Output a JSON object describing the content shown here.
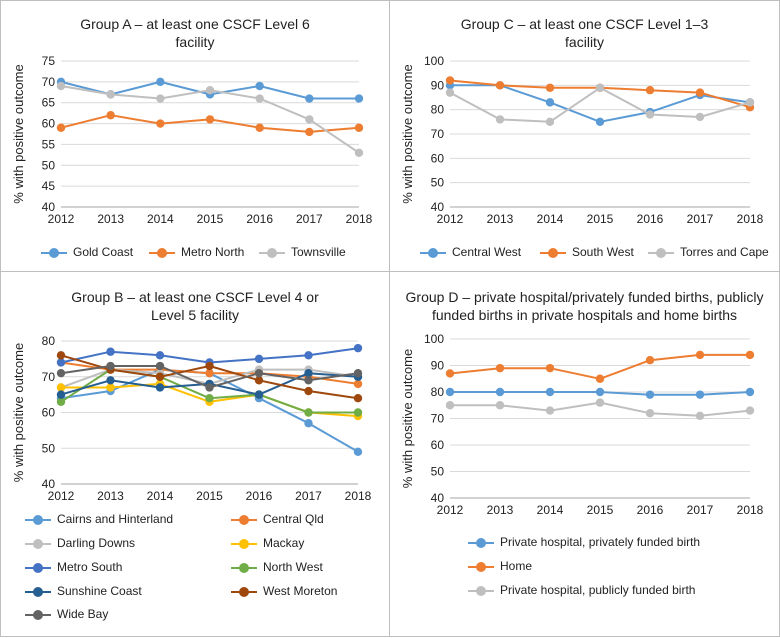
{
  "chart_data": [
    {
      "type": "line",
      "title_lines": [
        "Group A – at least one CSCF Level 6",
        "facility"
      ],
      "ylabel": "% with positive outcome",
      "xlabel": "",
      "x": [
        "2012",
        "2013",
        "2014",
        "2015",
        "2016",
        "2017",
        "2018"
      ],
      "ylim": [
        40,
        75
      ],
      "yticks": [
        40,
        45,
        50,
        55,
        60,
        65,
        70,
        75
      ],
      "grid": true,
      "legend_position": "bottom",
      "series": [
        {
          "name": "Gold Coast",
          "color": "#5b9bd5",
          "values": [
            70,
            67,
            70,
            67,
            69,
            66,
            66
          ]
        },
        {
          "name": "Metro North",
          "color": "#ed7d31",
          "values": [
            59,
            62,
            60,
            61,
            59,
            58,
            59
          ]
        },
        {
          "name": "Townsville",
          "color": "#bfbfbf",
          "values": [
            69,
            67,
            66,
            68,
            66,
            61,
            53
          ]
        }
      ]
    },
    {
      "type": "line",
      "title_lines": [
        "Group C – at least one CSCF Level 1–3",
        "facility"
      ],
      "ylabel": "% with positive outcome",
      "xlabel": "",
      "x": [
        "2012",
        "2013",
        "2014",
        "2015",
        "2016",
        "2017",
        "2018"
      ],
      "ylim": [
        40,
        100
      ],
      "yticks": [
        40,
        50,
        60,
        70,
        80,
        90,
        100
      ],
      "grid": true,
      "legend_position": "bottom",
      "series": [
        {
          "name": "Central West",
          "color": "#5b9bd5",
          "values": [
            90,
            90,
            83,
            75,
            79,
            86,
            83
          ]
        },
        {
          "name": "South West",
          "color": "#ed7d31",
          "values": [
            92,
            90,
            89,
            89,
            88,
            87,
            81
          ]
        },
        {
          "name": "Torres and Cape",
          "color": "#bfbfbf",
          "values": [
            87,
            76,
            75,
            89,
            78,
            77,
            83
          ]
        }
      ]
    },
    {
      "type": "line",
      "title_lines": [
        "Group B – at least one CSCF Level 4 or",
        "Level 5 facility"
      ],
      "ylabel": "% with positive outcome",
      "xlabel": "",
      "x": [
        "2012",
        "2013",
        "2014",
        "2015",
        "2016",
        "2017",
        "2018"
      ],
      "ylim": [
        40,
        80
      ],
      "yticks": [
        40,
        50,
        60,
        70,
        80
      ],
      "grid": true,
      "legend_position": "bottom",
      "series": [
        {
          "name": "Cairns and Hinterland",
          "color": "#5b9bd5",
          "values": [
            64,
            66,
            72,
            71,
            64,
            57,
            49
          ]
        },
        {
          "name": "Central Qld",
          "color": "#ed7d31",
          "values": [
            74,
            72,
            72,
            71,
            71,
            70,
            68
          ]
        },
        {
          "name": "Darling Downs",
          "color": "#bfbfbf",
          "values": [
            67,
            72,
            71,
            68,
            72,
            72,
            70
          ]
        },
        {
          "name": "Mackay",
          "color": "#ffc000",
          "values": [
            67,
            67,
            68,
            63,
            65,
            60,
            59
          ]
        },
        {
          "name": "Metro South",
          "color": "#4472c4",
          "values": [
            74,
            77,
            76,
            74,
            75,
            76,
            78
          ]
        },
        {
          "name": "North West",
          "color": "#70ad47",
          "values": [
            63,
            72,
            70,
            64,
            65,
            60,
            60
          ]
        },
        {
          "name": "Sunshine Coast",
          "color": "#255e91",
          "values": [
            65,
            69,
            67,
            68,
            65,
            71,
            70
          ]
        },
        {
          "name": "West Moreton",
          "color": "#9e480e",
          "values": [
            76,
            72,
            70,
            73,
            69,
            66,
            64
          ]
        },
        {
          "name": "Wide Bay",
          "color": "#636363",
          "values": [
            71,
            73,
            73,
            67,
            71,
            69,
            71
          ]
        }
      ]
    },
    {
      "type": "line",
      "title_lines": [
        "Group D – private hospital/privately funded births, publicly",
        "funded births in private hospitals and home births"
      ],
      "ylabel": "% with positive outcome",
      "xlabel": "",
      "x": [
        "2012",
        "2013",
        "2014",
        "2015",
        "2016",
        "2017",
        "2018"
      ],
      "ylim": [
        40,
        100
      ],
      "yticks": [
        40,
        50,
        60,
        70,
        80,
        90,
        100
      ],
      "grid": true,
      "legend_position": "bottom",
      "series": [
        {
          "name": "Private hospital, privately funded birth",
          "color": "#5b9bd5",
          "values": [
            80,
            80,
            80,
            80,
            79,
            79,
            80
          ]
        },
        {
          "name": "Home",
          "color": "#ed7d31",
          "values": [
            87,
            89,
            89,
            85,
            92,
            94,
            94
          ]
        },
        {
          "name": "Private hospital, publicly funded birth",
          "color": "#bfbfbf",
          "values": [
            75,
            75,
            73,
            76,
            72,
            71,
            73
          ]
        }
      ]
    }
  ]
}
